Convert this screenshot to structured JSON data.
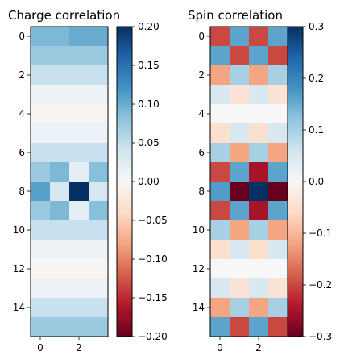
{
  "chart_data": [
    {
      "type": "heatmap",
      "title": "Charge correlation",
      "rows": 16,
      "cols": 4,
      "values": [
        [
          0.09,
          0.09,
          0.1,
          0.1
        ],
        [
          0.075,
          0.075,
          0.075,
          0.075
        ],
        [
          0.045,
          0.045,
          0.045,
          0.045
        ],
        [
          0.012,
          0.012,
          0.012,
          0.012
        ],
        [
          -0.005,
          -0.005,
          -0.005,
          -0.005
        ],
        [
          0.012,
          0.012,
          0.012,
          0.012
        ],
        [
          0.045,
          0.045,
          0.045,
          0.045
        ],
        [
          0.075,
          0.09,
          0.02,
          0.085
        ],
        [
          0.11,
          0.035,
          0.2,
          0.035
        ],
        [
          0.075,
          0.09,
          0.02,
          0.085
        ],
        [
          0.045,
          0.045,
          0.045,
          0.045
        ],
        [
          0.012,
          0.012,
          0.012,
          0.012
        ],
        [
          -0.005,
          -0.005,
          -0.005,
          -0.005
        ],
        [
          0.012,
          0.012,
          0.012,
          0.012
        ],
        [
          0.045,
          0.045,
          0.045,
          0.045
        ],
        [
          0.075,
          0.075,
          0.075,
          0.075
        ]
      ],
      "xticks": [
        "0",
        "2"
      ],
      "xtick_positions": [
        0,
        2
      ],
      "yticks": [
        "0",
        "2",
        "4",
        "6",
        "8",
        "10",
        "12",
        "14"
      ],
      "ytick_positions": [
        0,
        2,
        4,
        6,
        8,
        10,
        12,
        14
      ],
      "colorbar": {
        "range": [
          -0.2,
          0.2
        ],
        "colormap": "RdBu",
        "ticks": [
          0.2,
          0.15,
          0.1,
          0.05,
          0.0,
          -0.05,
          -0.1,
          -0.15,
          -0.2
        ],
        "tick_labels": [
          "0.20",
          "0.15",
          "0.10",
          "0.05",
          "0.00",
          "−0.05",
          "−0.10",
          "−0.15",
          "−0.20"
        ]
      }
    },
    {
      "type": "heatmap",
      "title": "Spin correlation",
      "rows": 16,
      "cols": 4,
      "values": [
        [
          -0.2,
          0.16,
          -0.2,
          0.16
        ],
        [
          0.16,
          -0.2,
          0.16,
          -0.2
        ],
        [
          -0.12,
          0.1,
          -0.12,
          0.1
        ],
        [
          0.05,
          -0.04,
          0.05,
          -0.04
        ],
        [
          0.0,
          0.0,
          0.0,
          0.0
        ],
        [
          -0.05,
          0.05,
          -0.05,
          0.05
        ],
        [
          0.1,
          -0.12,
          0.1,
          -0.12
        ],
        [
          -0.2,
          0.16,
          -0.25,
          0.16
        ],
        [
          0.17,
          -0.3,
          0.3,
          -0.3
        ],
        [
          -0.2,
          0.16,
          -0.25,
          0.16
        ],
        [
          0.1,
          -0.12,
          0.1,
          -0.12
        ],
        [
          -0.05,
          0.05,
          -0.05,
          0.05
        ],
        [
          0.0,
          0.0,
          0.0,
          0.0
        ],
        [
          0.05,
          -0.04,
          0.05,
          -0.04
        ],
        [
          -0.12,
          0.1,
          -0.12,
          0.1
        ],
        [
          0.16,
          -0.2,
          0.16,
          -0.2
        ]
      ],
      "xticks": [
        "0",
        "2"
      ],
      "xtick_positions": [
        0,
        2
      ],
      "yticks": [
        "0",
        "2",
        "4",
        "6",
        "8",
        "10",
        "12",
        "14"
      ],
      "ytick_positions": [
        0,
        2,
        4,
        6,
        8,
        10,
        12,
        14
      ],
      "colorbar": {
        "range": [
          -0.3,
          0.3
        ],
        "colormap": "RdBu",
        "ticks": [
          0.3,
          0.2,
          0.1,
          0.0,
          -0.1,
          -0.2,
          -0.3
        ],
        "tick_labels": [
          "0.3",
          "0.2",
          "0.1",
          "0.0",
          "−0.1",
          "−0.2",
          "−0.3"
        ]
      }
    }
  ]
}
